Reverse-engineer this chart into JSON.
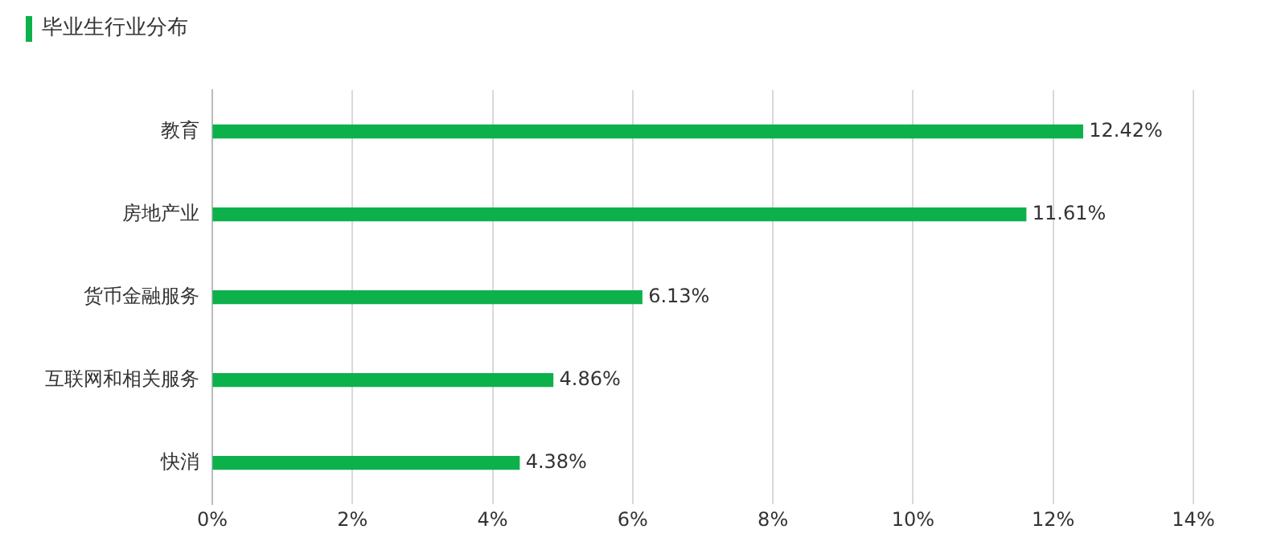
{
  "chart_data": {
    "type": "bar",
    "orientation": "horizontal",
    "title": "毕业生行业分布",
    "categories": [
      "教育",
      "房地产业",
      "货币金融服务",
      "互联网和相关服务",
      "快消"
    ],
    "values": [
      12.42,
      11.61,
      6.13,
      4.86,
      4.38
    ],
    "value_labels": [
      "12.42%",
      "11.61%",
      "6.13%",
      "4.86%",
      "4.38%"
    ],
    "color": "#0db14b",
    "xlim": [
      0,
      14
    ],
    "xticks": [
      {
        "value": 0,
        "label": "0%"
      },
      {
        "value": 2,
        "label": "2%"
      },
      {
        "value": 4,
        "label": "4%"
      },
      {
        "value": 6,
        "label": "6%"
      },
      {
        "value": 8,
        "label": "8%"
      },
      {
        "value": 10,
        "label": "10%"
      },
      {
        "value": 12,
        "label": "12%"
      },
      {
        "value": 14,
        "label": "14%"
      }
    ],
    "grid": "x"
  }
}
